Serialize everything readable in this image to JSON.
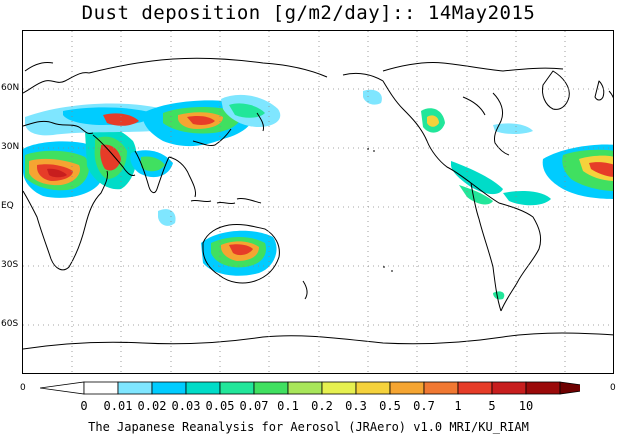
{
  "title": "Dust deposition [g/m2/day]:: 14May2015",
  "map": {
    "lat_labels": [
      "60N",
      "30N",
      "EQ",
      "30S",
      "60S"
    ],
    "edge_left_label": "0",
    "edge_right_label": "0",
    "gridlines": "dotted",
    "projection": "equirectangular, 0°E at left edge, Pacific centered"
  },
  "colorbar": {
    "levels": [
      "0",
      "0.01",
      "0.02",
      "0.03",
      "0.05",
      "0.07",
      "0.1",
      "0.2",
      "0.3",
      "0.5",
      "0.7",
      "1",
      "5",
      "10"
    ],
    "colors": [
      "#ffffff",
      "#7fe6ff",
      "#00ccff",
      "#00dcc8",
      "#22e69a",
      "#40e060",
      "#a8e65a",
      "#e6f050",
      "#f5d23c",
      "#f5a532",
      "#f07832",
      "#e63c28",
      "#c81e1e",
      "#9b0a0a",
      "#6e0000"
    ],
    "under_arrow_color": "#ffffff",
    "over_arrow_color": "#6e0000"
  },
  "credit": "The Japanese Reanalysis for Aerosol (JRAero) v1.0 MRI/KU_RIAM"
}
